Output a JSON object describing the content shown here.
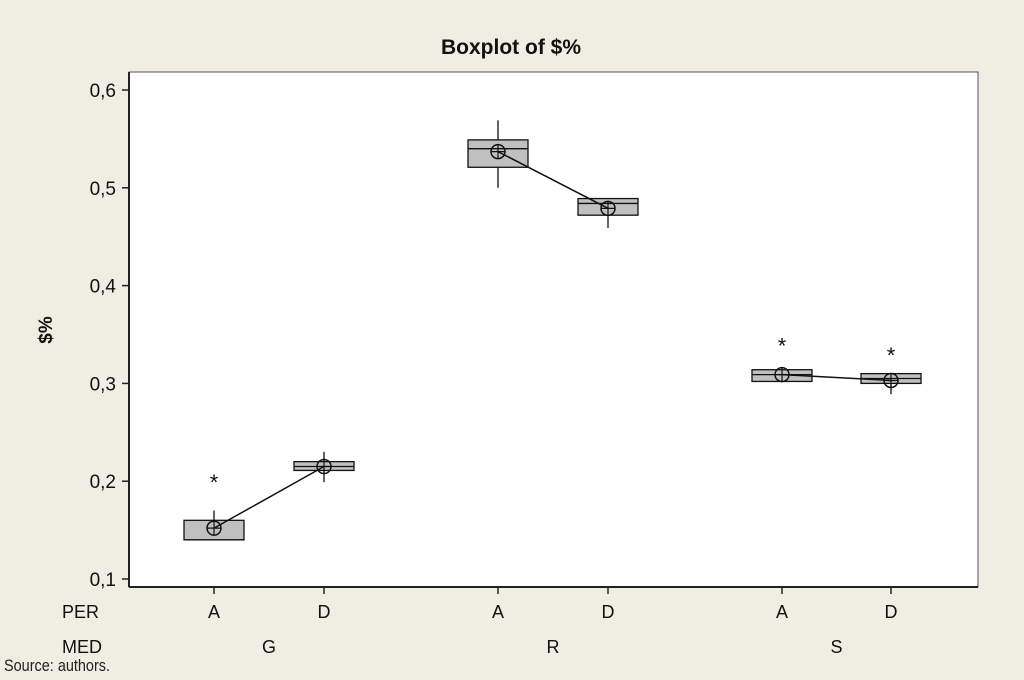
{
  "chart_data": {
    "type": "boxplot",
    "title": "Boxplot of $%",
    "ylabel": "$%",
    "ylim": [
      0.095,
      0.63
    ],
    "yticks": [
      0.1,
      0.2,
      0.3,
      0.4,
      0.5,
      0.6
    ],
    "ytick_labels": [
      "0,1",
      "0,2",
      "0,3",
      "0,4",
      "0,5",
      "0,6"
    ],
    "x_row_labels": [
      "PER",
      "MED"
    ],
    "groups": [
      {
        "med": "G",
        "boxes": [
          {
            "per": "A",
            "q1": 0.14,
            "median": 0.14,
            "q3": 0.16,
            "whisker_low": 0.14,
            "whisker_high": 0.17,
            "mean": 0.152,
            "outliers": [
              0.2
            ]
          },
          {
            "per": "D",
            "q1": 0.211,
            "median": 0.215,
            "q3": 0.22,
            "whisker_low": 0.199,
            "whisker_high": 0.23,
            "mean": 0.215,
            "outliers": []
          }
        ]
      },
      {
        "med": "R",
        "boxes": [
          {
            "per": "A",
            "q1": 0.521,
            "median": 0.54,
            "q3": 0.549,
            "whisker_low": 0.5,
            "whisker_high": 0.569,
            "mean": 0.537,
            "outliers": []
          },
          {
            "per": "D",
            "q1": 0.472,
            "median": 0.484,
            "q3": 0.489,
            "whisker_low": 0.459,
            "whisker_high": 0.489,
            "mean": 0.479,
            "outliers": []
          }
        ]
      },
      {
        "med": "S",
        "boxes": [
          {
            "per": "A",
            "q1": 0.302,
            "median": 0.309,
            "q3": 0.314,
            "whisker_low": 0.302,
            "whisker_high": 0.314,
            "mean": 0.309,
            "outliers": [
              0.34
            ]
          },
          {
            "per": "D",
            "q1": 0.3,
            "median": 0.305,
            "q3": 0.31,
            "whisker_low": 0.289,
            "whisker_high": 0.31,
            "mean": 0.303,
            "outliers": [
              0.33
            ]
          }
        ]
      }
    ],
    "box_color": "#c0c0c0"
  },
  "source": "Source: authors."
}
